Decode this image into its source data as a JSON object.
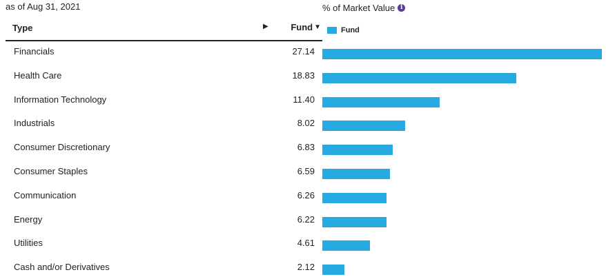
{
  "as_of": "as of Aug 31, 2021",
  "market_value_title": "% of Market Value",
  "info_icon": "info-icon",
  "table": {
    "col_type": "Type",
    "col_fund": "Fund"
  },
  "legend": {
    "label": "Fund",
    "color": "#27aae1"
  },
  "chart_data": {
    "type": "bar",
    "orientation": "horizontal",
    "title": "% of Market Value",
    "categories": [
      "Financials",
      "Health Care",
      "Information Technology",
      "Industrials",
      "Consumer Discretionary",
      "Consumer Staples",
      "Communication",
      "Energy",
      "Utilities",
      "Cash and/or Derivatives"
    ],
    "series": [
      {
        "name": "Fund",
        "color": "#27aae1",
        "values": [
          27.14,
          18.83,
          11.4,
          8.02,
          6.83,
          6.59,
          6.26,
          6.22,
          4.61,
          2.12
        ]
      }
    ],
    "value_labels": [
      "27.14",
      "18.83",
      "11.40",
      "8.02",
      "6.83",
      "6.59",
      "6.26",
      "6.22",
      "4.61",
      "2.12"
    ],
    "xlim": [
      0,
      27.14
    ],
    "grid": false,
    "legend_position": "top-left"
  }
}
